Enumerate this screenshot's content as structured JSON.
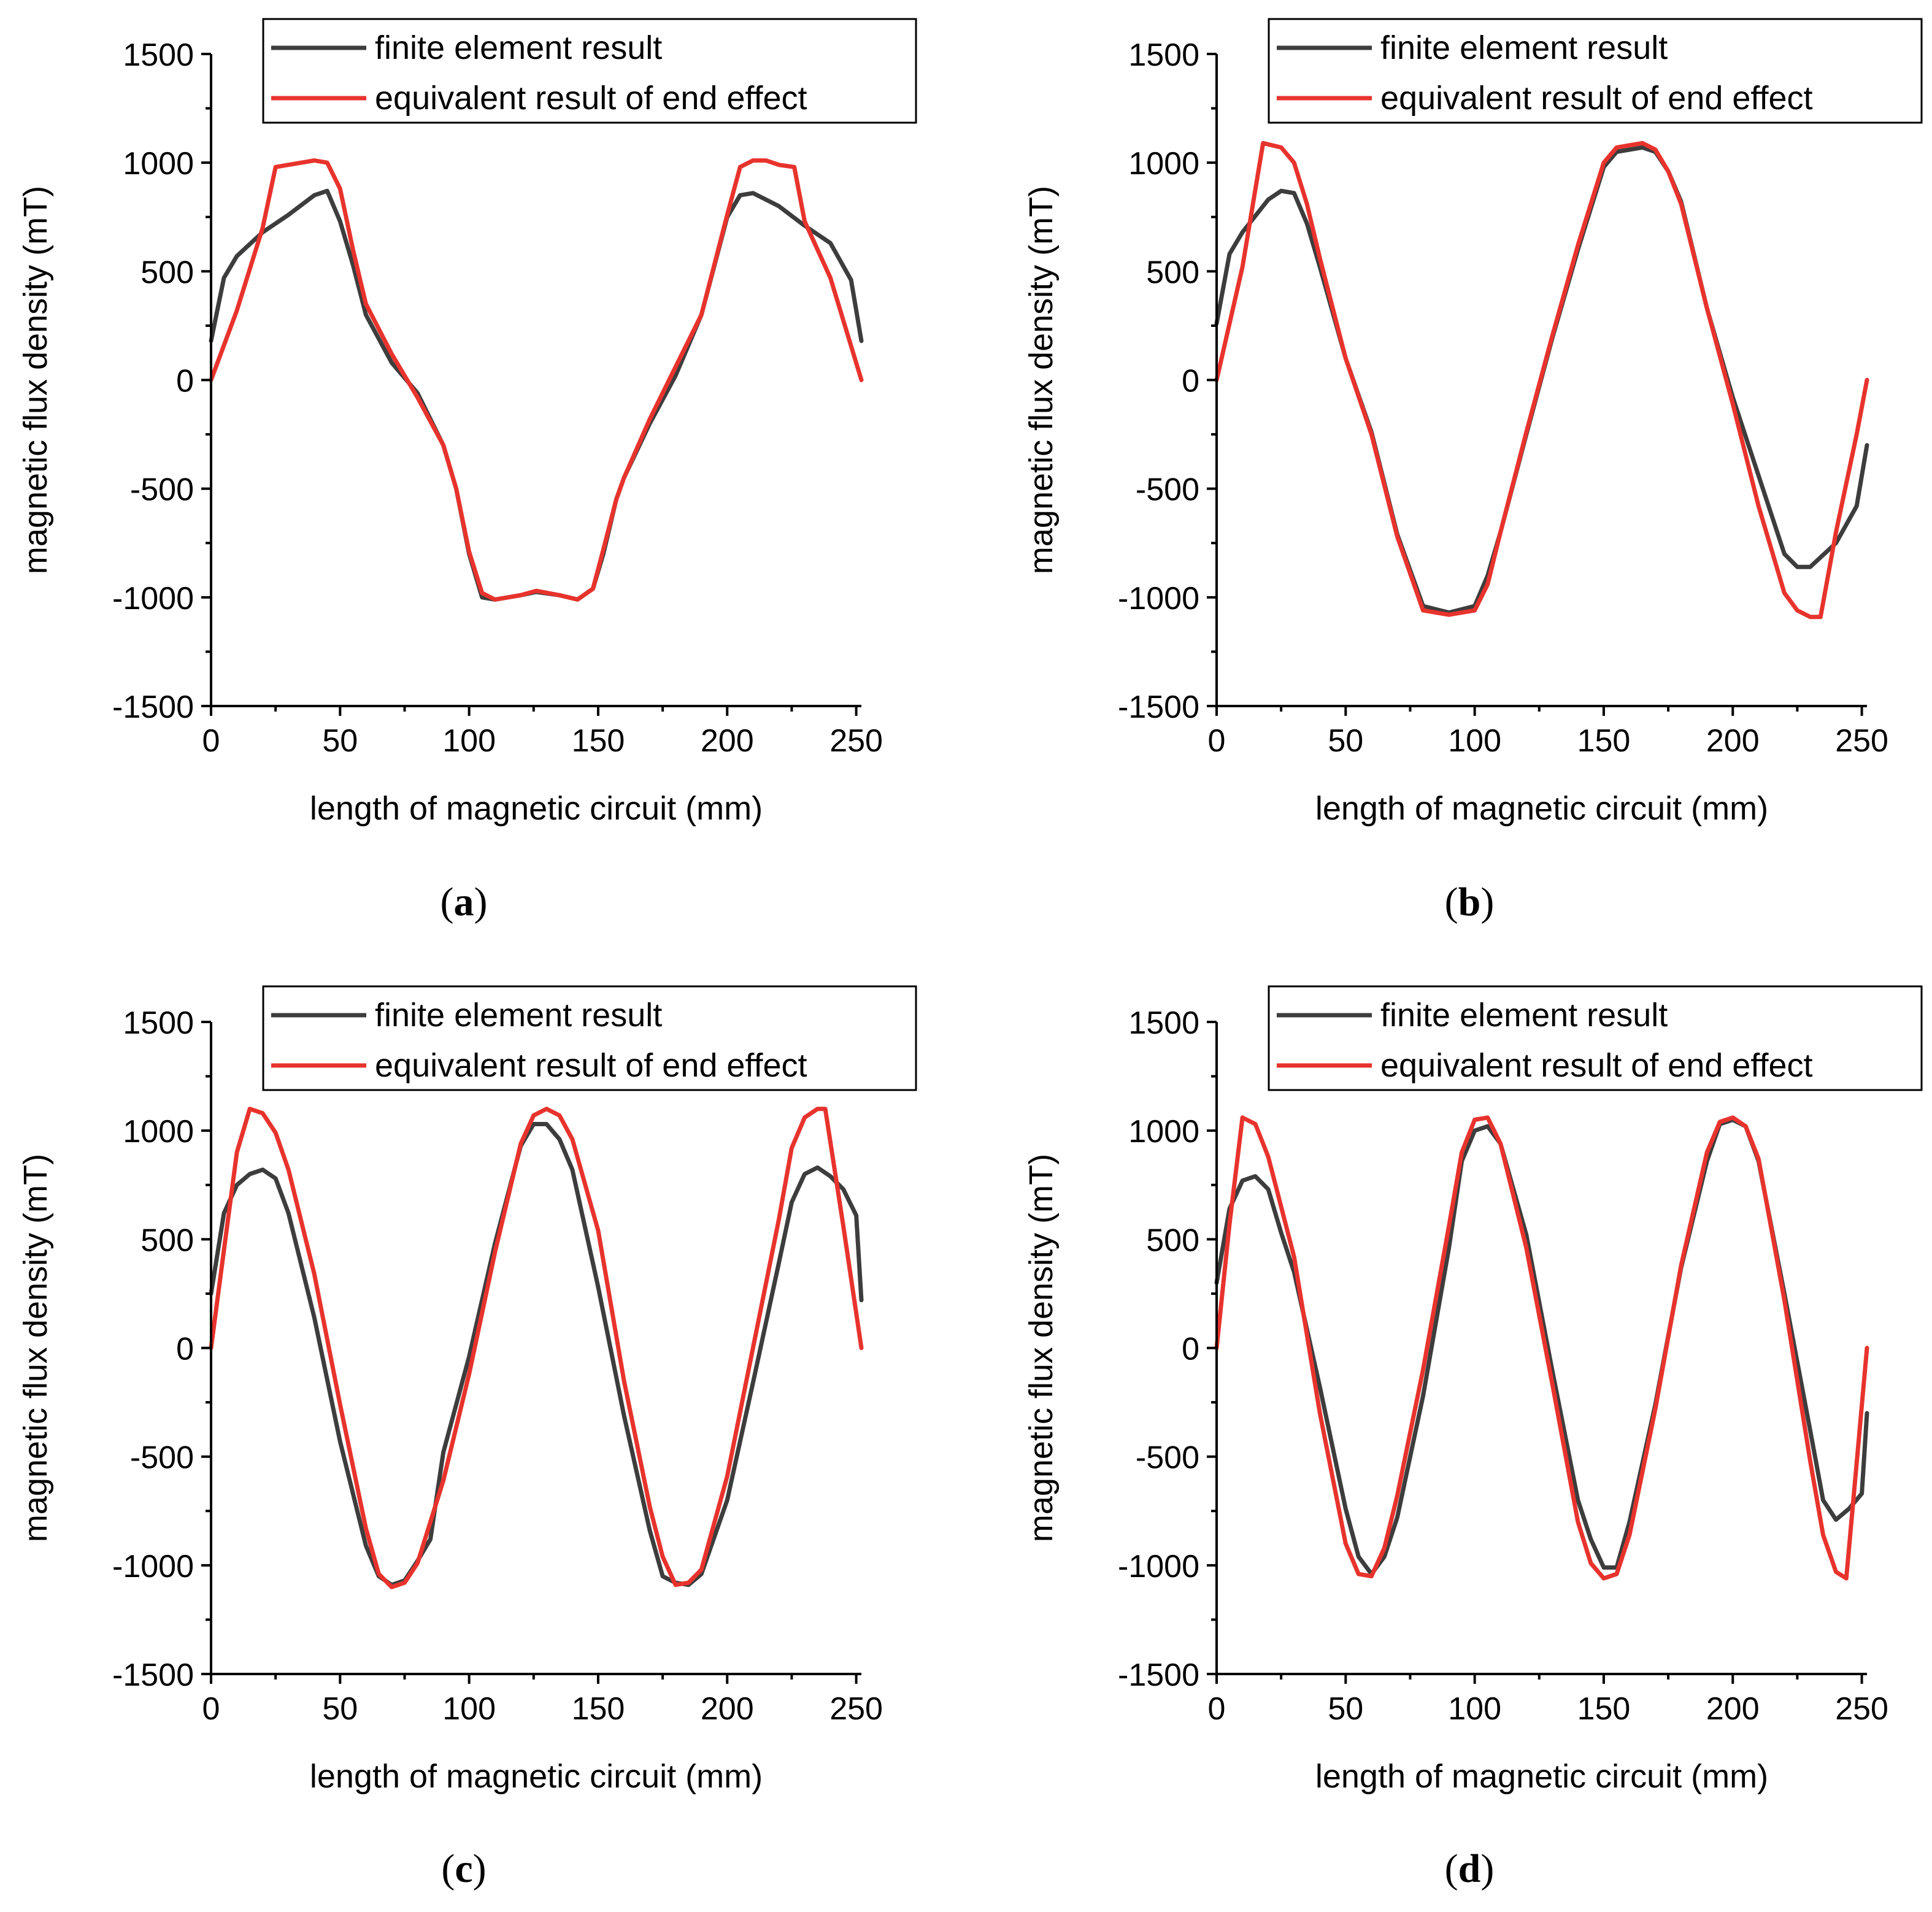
{
  "chart_data": [
    {
      "type": "line",
      "panel_label": "a",
      "xlabel": "length of magnetic circuit (mm)",
      "ylabel": "magnetic flux density (mT)",
      "xlim": [
        0,
        252
      ],
      "ylim": [
        -1500,
        1500
      ],
      "xticks": [
        0,
        50,
        100,
        150,
        200,
        250
      ],
      "yticks": [
        1500,
        1000,
        500,
        0,
        -500,
        -1000,
        -1500
      ],
      "legend_position": "top-right",
      "series": [
        {
          "name": "finite element result",
          "color": "#3d3d3d",
          "x": [
            0,
            5,
            10,
            20,
            30,
            40,
            45,
            50,
            55,
            60,
            70,
            80,
            90,
            95,
            100,
            105,
            110,
            120,
            126,
            135,
            142,
            148,
            152,
            157,
            160,
            170,
            180,
            190,
            200,
            205,
            210,
            220,
            230,
            240,
            248,
            252
          ],
          "y": [
            180,
            470,
            570,
            680,
            760,
            850,
            870,
            730,
            530,
            300,
            80,
            -60,
            -300,
            -500,
            -800,
            -1000,
            -1010,
            -990,
            -975,
            -990,
            -1010,
            -960,
            -800,
            -550,
            -450,
            -200,
            20,
            300,
            750,
            850,
            860,
            800,
            710,
            630,
            460,
            180
          ]
        },
        {
          "name": "equivalent result of end effect",
          "color": "#e8332d",
          "x": [
            0,
            10,
            20,
            25,
            30,
            40,
            45,
            50,
            55,
            60,
            70,
            80,
            90,
            95,
            100,
            105,
            110,
            120,
            126,
            135,
            142,
            148,
            152,
            157,
            160,
            170,
            180,
            190,
            200,
            205,
            210,
            215,
            220,
            226,
            230,
            240,
            252
          ],
          "y": [
            0,
            320,
            700,
            980,
            990,
            1010,
            1000,
            880,
            600,
            350,
            120,
            -80,
            -300,
            -500,
            -790,
            -980,
            -1010,
            -990,
            -970,
            -990,
            -1010,
            -960,
            -780,
            -550,
            -450,
            -180,
            60,
            300,
            760,
            980,
            1010,
            1010,
            990,
            980,
            730,
            470,
            0
          ]
        }
      ]
    },
    {
      "type": "line",
      "panel_label": "b",
      "xlabel": "length of magnetic circuit (mm)",
      "ylabel": "magnetic flux density (mT)",
      "xlim": [
        0,
        252
      ],
      "ylim": [
        -1500,
        1500
      ],
      "xticks": [
        0,
        50,
        100,
        150,
        200,
        250
      ],
      "yticks": [
        1500,
        1000,
        500,
        0,
        -500,
        -1000,
        -1500
      ],
      "legend_position": "top-right",
      "series": [
        {
          "name": "finite element result",
          "color": "#3d3d3d",
          "x": [
            0,
            5,
            10,
            20,
            25,
            30,
            35,
            40,
            50,
            60,
            70,
            80,
            90,
            100,
            105,
            110,
            120,
            130,
            140,
            150,
            155,
            165,
            170,
            175,
            180,
            190,
            200,
            210,
            220,
            225,
            230,
            240,
            248,
            252
          ],
          "y": [
            260,
            580,
            680,
            830,
            870,
            860,
            720,
            520,
            100,
            -240,
            -710,
            -1040,
            -1070,
            -1040,
            -900,
            -700,
            -250,
            190,
            600,
            980,
            1050,
            1070,
            1050,
            960,
            820,
            330,
            -80,
            -440,
            -800,
            -860,
            -860,
            -750,
            -580,
            -300
          ]
        },
        {
          "name": "equivalent result of end effect",
          "color": "#e8332d",
          "x": [
            0,
            10,
            18,
            25,
            30,
            35,
            40,
            50,
            60,
            70,
            80,
            90,
            100,
            105,
            110,
            120,
            130,
            140,
            150,
            155,
            165,
            170,
            175,
            180,
            190,
            200,
            210,
            220,
            225,
            230,
            234,
            240,
            248,
            252
          ],
          "y": [
            0,
            520,
            1090,
            1070,
            1000,
            810,
            560,
            100,
            -250,
            -720,
            -1060,
            -1080,
            -1060,
            -940,
            -700,
            -240,
            200,
            620,
            1000,
            1070,
            1090,
            1060,
            960,
            810,
            330,
            -110,
            -580,
            -980,
            -1060,
            -1090,
            -1090,
            -700,
            -250,
            0
          ]
        }
      ]
    },
    {
      "type": "line",
      "panel_label": "c",
      "xlabel": "length of magnetic circuit (mm)",
      "ylabel": "magnetic flux density (mT)",
      "xlim": [
        0,
        252
      ],
      "ylim": [
        -1500,
        1500
      ],
      "xticks": [
        0,
        50,
        100,
        150,
        200,
        250
      ],
      "yticks": [
        1500,
        1000,
        500,
        0,
        -500,
        -1000,
        -1500
      ],
      "legend_position": "top-right",
      "series": [
        {
          "name": "finite element result",
          "color": "#3d3d3d",
          "x": [
            0,
            5,
            10,
            15,
            20,
            25,
            30,
            40,
            50,
            60,
            65,
            70,
            75,
            80,
            85,
            90,
            100,
            110,
            120,
            125,
            130,
            135,
            140,
            150,
            160,
            170,
            175,
            180,
            185,
            190,
            200,
            210,
            220,
            225,
            230,
            235,
            240,
            245,
            250,
            252
          ],
          "y": [
            250,
            620,
            750,
            800,
            820,
            780,
            620,
            140,
            -430,
            -910,
            -1050,
            -1090,
            -1070,
            -980,
            -880,
            -480,
            -40,
            480,
            930,
            1030,
            1030,
            960,
            820,
            280,
            -310,
            -840,
            -1050,
            -1080,
            -1090,
            -1040,
            -700,
            -160,
            390,
            670,
            800,
            830,
            790,
            730,
            610,
            220
          ]
        },
        {
          "name": "equivalent result of end effect",
          "color": "#e8332d",
          "x": [
            0,
            5,
            10,
            15,
            20,
            25,
            30,
            40,
            50,
            60,
            65,
            70,
            75,
            80,
            90,
            100,
            110,
            120,
            125,
            130,
            135,
            140,
            150,
            160,
            170,
            175,
            180,
            185,
            190,
            200,
            210,
            220,
            225,
            230,
            235,
            238,
            245,
            252
          ],
          "y": [
            0,
            450,
            900,
            1100,
            1080,
            990,
            820,
            340,
            -260,
            -830,
            -1040,
            -1100,
            -1080,
            -990,
            -610,
            -120,
            440,
            940,
            1070,
            1100,
            1070,
            960,
            540,
            -150,
            -730,
            -960,
            -1090,
            -1080,
            -1020,
            -590,
            0,
            590,
            920,
            1060,
            1100,
            1100,
            560,
            0
          ]
        }
      ]
    },
    {
      "type": "line",
      "panel_label": "d",
      "xlabel": "length of magnetic circuit (mm)",
      "ylabel": "magnetic flux density (mT)",
      "xlim": [
        0,
        252
      ],
      "ylim": [
        -1500,
        1500
      ],
      "xticks": [
        0,
        50,
        100,
        150,
        200,
        250
      ],
      "yticks": [
        1500,
        1000,
        500,
        0,
        -500,
        -1000,
        -1500
      ],
      "legend_position": "top-right",
      "series": [
        {
          "name": "finite element result",
          "color": "#3d3d3d",
          "x": [
            0,
            5,
            10,
            15,
            20,
            25,
            30,
            40,
            50,
            55,
            60,
            65,
            70,
            80,
            90,
            95,
            100,
            105,
            110,
            120,
            130,
            140,
            145,
            150,
            155,
            160,
            170,
            180,
            190,
            195,
            200,
            205,
            210,
            220,
            230,
            235,
            240,
            245,
            250,
            252
          ],
          "y": [
            300,
            640,
            770,
            790,
            730,
            530,
            350,
            -180,
            -740,
            -960,
            -1040,
            -960,
            -780,
            -220,
            460,
            860,
            1000,
            1020,
            940,
            520,
            -100,
            -700,
            -880,
            -1010,
            -1010,
            -800,
            -260,
            370,
            860,
            1030,
            1050,
            1020,
            860,
            250,
            -380,
            -700,
            -790,
            -740,
            -670,
            -300
          ]
        },
        {
          "name": "equivalent result of end effect",
          "color": "#e8332d",
          "x": [
            0,
            5,
            10,
            15,
            20,
            30,
            40,
            50,
            55,
            60,
            65,
            70,
            80,
            90,
            95,
            100,
            105,
            110,
            120,
            130,
            140,
            145,
            150,
            155,
            160,
            170,
            180,
            190,
            195,
            200,
            205,
            210,
            220,
            230,
            235,
            240,
            244,
            248,
            252
          ],
          "y": [
            0,
            570,
            1060,
            1030,
            880,
            420,
            -300,
            -900,
            -1040,
            -1050,
            -920,
            -680,
            -100,
            560,
            900,
            1050,
            1060,
            940,
            460,
            -160,
            -800,
            -990,
            -1060,
            -1040,
            -860,
            -280,
            380,
            900,
            1040,
            1060,
            1020,
            870,
            220,
            -520,
            -860,
            -1030,
            -1060,
            -530,
            0
          ]
        }
      ]
    }
  ]
}
